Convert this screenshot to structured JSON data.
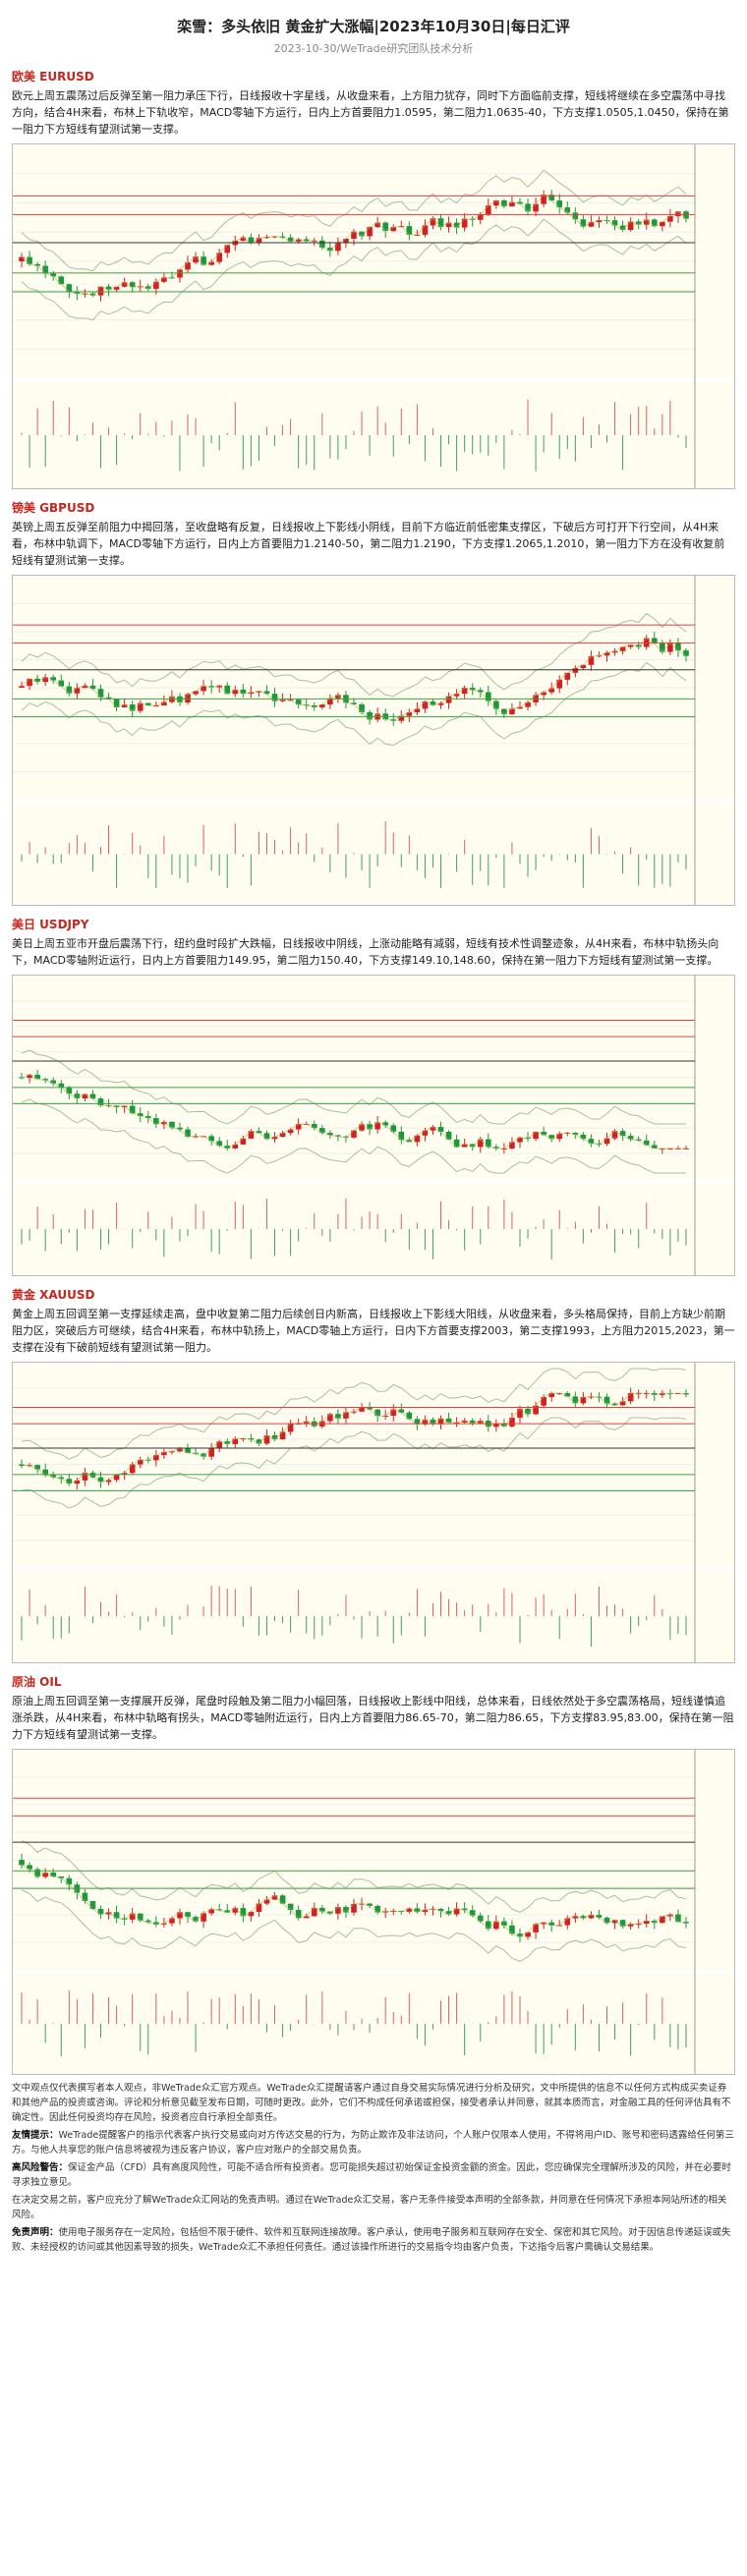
{
  "header": {
    "title": "栾雪：多头依旧 黄金扩大涨幅|2023年10月30日|每日汇评",
    "subtitle": "2023-10-30/WeTrade研究团队技术分析"
  },
  "sections": [
    {
      "heading": "欧美 EURUSD",
      "text": "欧元上周五震荡过后反弹至第一阻力承压下行，日线报收十字星线，从收盘来看，上方阻力犹存，同时下方面临前支撑，短线将继续在多空震荡中寻找方向，结合4H来看，布林上下轨收窄，MACD零轴下方运行，日内上方首要阻力1.0595，第二阻力1.0635-40，下方支撑1.0505,1.0450，保持在第一阻力下方短线有望测试第一支撑。"
    },
    {
      "heading": "镑美 GBPUSD",
      "text": "英镑上周五反弹至前阻力中揭回落，至收盘略有反复，日线报收上下影线小阴线，目前下方临近前低密集支撑区，下破后方可打开下行空间，从4H来看，布林中轨调下，MACD零轴下方运行，日内上方首要阻力1.2140-50，第二阻力1.2190，下方支撑1.2065,1.2010，第一阻力下方在没有收复前短线有望测试第一支撑。"
    },
    {
      "heading": "美日 USDJPY",
      "text": "美日上周五亚市开盘后震荡下行，纽约盘时段扩大跌幅，日线报收中阴线，上涨动能略有减弱，短线有技术性调整迹象，从4H来看，布林中轨扬头向下，MACD零轴附近运行，日内上方首要阻力149.95，第二阻力150.40，下方支撑149.10,148.60，保持在第一阻力下方短线有望测试第一支撑。"
    },
    {
      "heading": "黄金 XAUUSD",
      "text": "黄金上周五回调至第一支撑延续走高，盘中收复第二阻力后续创日内新高，日线报收上下影线大阳线，从收盘来看，多头格局保持，目前上方缺少前期阻力区，突破后方可继续，结合4H来看，布林中轨扬上，MACD零轴上方运行，日内下方首要支撑2003，第二支撑1993，上方阻力2015,2023，第一支撑在没有下破前短线有望测试第一阻力。"
    },
    {
      "heading": "原油 OIL",
      "text": "原油上周五回调至第一支撑展开反弹，尾盘时段触及第二阻力小幅回落，日线报收上影线中阳线，总体来看，日线依然处于多空震荡格局，短线谨慎追涨杀跌，从4H来看，布林中轨略有拐头，MACD零轴附近运行，日内上方首要阻力86.65-70，第二阻力86.65，下方支撑83.95,83.00，保持在第一阻力下方短线有望测试第一支撑。"
    }
  ],
  "disclaimer": [
    {
      "text": "文中观点仅代表撰写者本人观点，非WeTrade众汇官方观点。WeTrade众汇提醒请客户通过自身交易实际情况进行分析及研究，文中所提供的信息不以任何方式构成买卖证券和其他产品的投资或咨询。评论和分析意见截至发布日期，可随时更改。此外，它们不构成任何承诺或担保，接受者承认并同意，就其本质而言，对金融工具的任何评估具有不确定性。因此任何投资均存在风险，投资者应自行承担全部责任。"
    },
    {
      "label": "友情提示：",
      "text": "WeTrade提醒客户的指示代表客户执行交易或向对方传达交易的行为，为防止欺诈及非法访问，个人账户仅限本人使用，不得将用户ID、账号和密码透露给任何第三方。与他人共享您的账户信息将被视为违反客户协议，客户应对账户的全部交易负责。"
    },
    {
      "label": "高风险警告：",
      "text": "保证金产品（CFD）具有高度风险性，可能不适合所有投资者。您可能损失超过初始保证金投资金额的资金。因此，您应确保完全理解所涉及的风险，并在必要时寻求独立意见。"
    },
    {
      "text": "在决定交易之前，客户应充分了解WeTrade众汇网站的免责声明。通过在WeTrade众汇交易，客户无条件接受本声明的全部条款，并同意在任何情况下承担本网站所述的相关风险。"
    },
    {
      "label": "免责声明：",
      "text": "使用电子服务存在一定风险，包括但不限于硬件、软件和互联网连接故障。客户承认，使用电子服务和互联网存在安全、保密和其它风险。对于因信息传递延误或失败、未经授权的访问或其他因素导致的损失，WeTrade众汇不承担任何责任。通过该操作所进行的交易指令均由客户负责，下达指令后客户需确认交易结果。"
    }
  ]
}
